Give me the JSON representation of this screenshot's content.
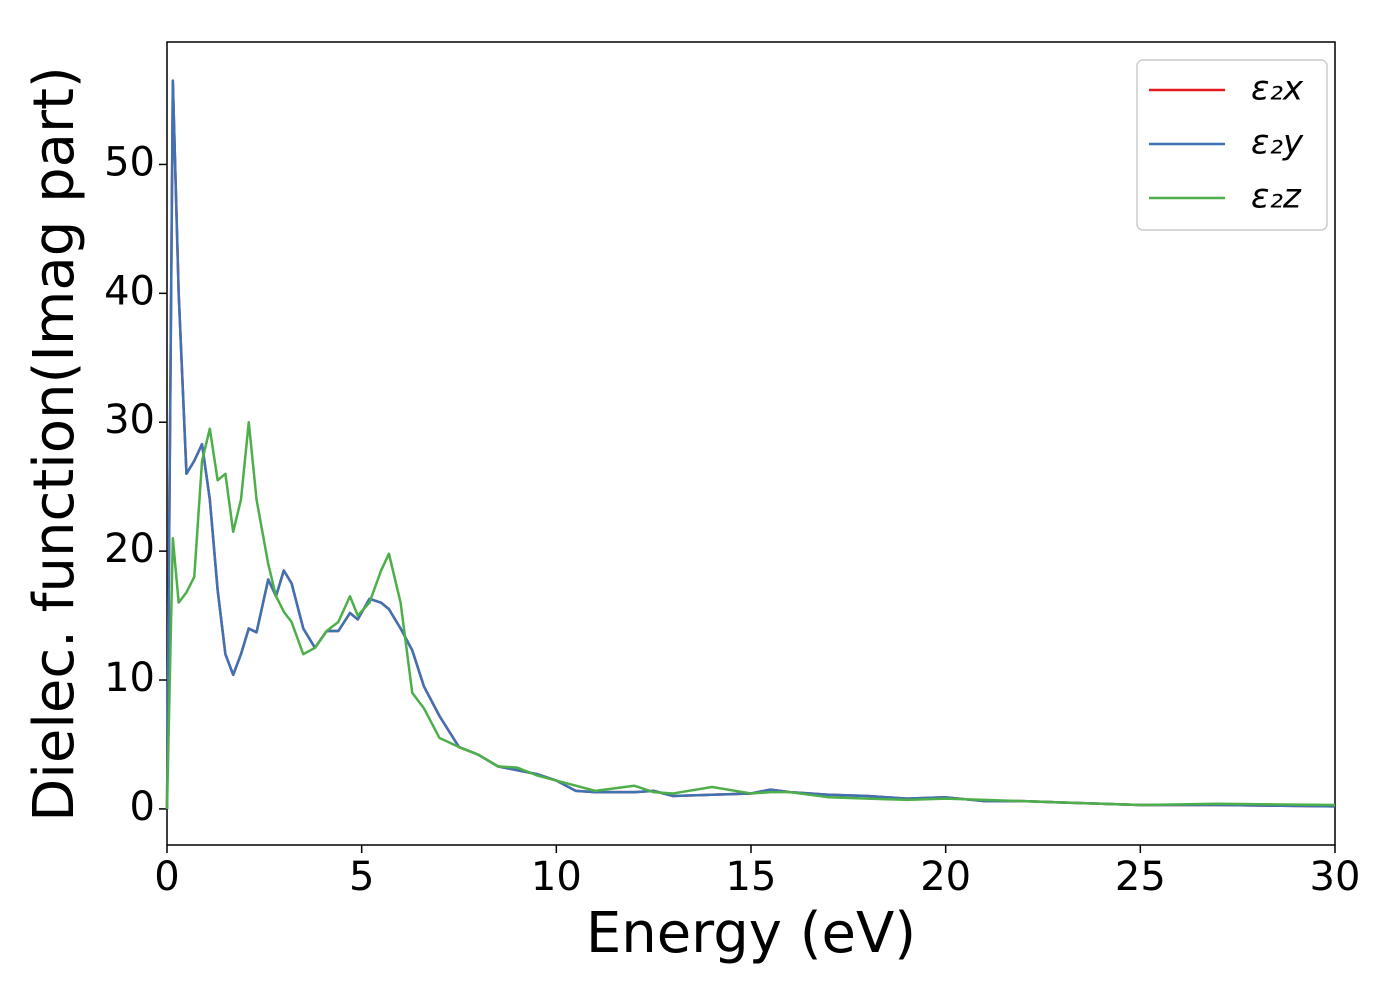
{
  "chart_data": {
    "type": "line",
    "xlabel": "Energy (eV)",
    "ylabel": "Dielec. function(Imag part)",
    "x": [
      0,
      0.15,
      0.3,
      0.5,
      0.7,
      0.9,
      1.1,
      1.3,
      1.5,
      1.7,
      1.9,
      2.1,
      2.3,
      2.6,
      2.8,
      3.0,
      3.2,
      3.5,
      3.8,
      4.1,
      4.4,
      4.7,
      4.9,
      5.2,
      5.5,
      5.7,
      6.0,
      6.3,
      6.6,
      7.0,
      7.5,
      8,
      8.5,
      9,
      9.5,
      10,
      10.5,
      11,
      12,
      12.5,
      13,
      14,
      15,
      15.5,
      16,
      17,
      18,
      19,
      20,
      21,
      22,
      23,
      25,
      27,
      30
    ],
    "series": [
      {
        "name": "ε₂x",
        "color": "#e41a1c",
        "values": [
          0,
          56.5,
          40,
          26,
          27,
          28.3,
          24,
          17,
          12,
          10.4,
          12,
          14,
          13.7,
          17.8,
          16.5,
          18.5,
          17.5,
          14,
          12.5,
          13.8,
          13.8,
          15.2,
          14.7,
          16.3,
          16,
          15.5,
          14,
          12.3,
          9.5,
          7.2,
          4.8,
          4.2,
          3.3,
          3,
          2.7,
          2.2,
          1.4,
          1.3,
          1.3,
          1.4,
          1.0,
          1.1,
          1.2,
          1.5,
          1.3,
          1.1,
          1.0,
          0.8,
          0.9,
          0.6,
          0.6,
          0.5,
          0.3,
          0.3,
          0.2
        ]
      },
      {
        "name": "ε₂y",
        "color": "#3d72b4",
        "values": [
          0,
          56.5,
          40,
          26,
          27,
          28.3,
          24,
          17,
          12,
          10.4,
          12,
          14,
          13.7,
          17.8,
          16.5,
          18.5,
          17.5,
          14,
          12.5,
          13.8,
          13.8,
          15.2,
          14.7,
          16.3,
          16,
          15.5,
          14,
          12.3,
          9.5,
          7.2,
          4.8,
          4.2,
          3.3,
          3,
          2.7,
          2.2,
          1.4,
          1.3,
          1.3,
          1.4,
          1.0,
          1.1,
          1.2,
          1.5,
          1.3,
          1.1,
          1.0,
          0.8,
          0.9,
          0.6,
          0.6,
          0.5,
          0.3,
          0.3,
          0.2
        ]
      },
      {
        "name": "ε₂z",
        "color": "#4daf4a",
        "values": [
          0,
          21,
          16,
          16.8,
          18,
          27,
          29.5,
          25.5,
          26,
          21.5,
          24,
          30,
          24,
          19,
          16.5,
          15.3,
          14.5,
          12,
          12.5,
          13.8,
          14.5,
          16.5,
          15,
          16,
          18.5,
          19.8,
          16,
          9,
          7.8,
          5.5,
          4.8,
          4.2,
          3.3,
          3.2,
          2.6,
          2.2,
          1.8,
          1.4,
          1.8,
          1.3,
          1.2,
          1.7,
          1.2,
          1.3,
          1.3,
          0.9,
          0.8,
          0.7,
          0.8,
          0.7,
          0.6,
          0.5,
          0.3,
          0.4,
          0.3
        ]
      }
    ],
    "xlim": [
      0,
      30
    ],
    "xticks": [
      0,
      5,
      10,
      15,
      20,
      25,
      30
    ],
    "ylim": [
      -2.8,
      59.5
    ],
    "yticks": [
      0,
      10,
      20,
      30,
      40,
      50
    ],
    "grid": false,
    "legend": "upper right"
  }
}
